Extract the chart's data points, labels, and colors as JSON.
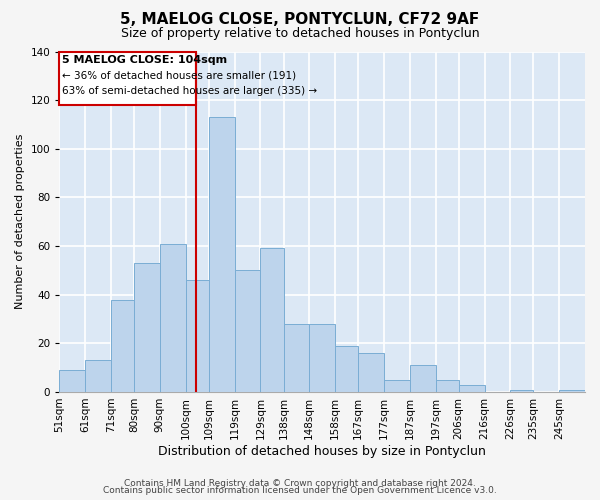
{
  "title": "5, MAELOG CLOSE, PONTYCLUN, CF72 9AF",
  "subtitle": "Size of property relative to detached houses in Pontyclun",
  "xlabel": "Distribution of detached houses by size in Pontyclun",
  "ylabel": "Number of detached properties",
  "bin_labels": [
    "51sqm",
    "61sqm",
    "71sqm",
    "80sqm",
    "90sqm",
    "100sqm",
    "109sqm",
    "119sqm",
    "129sqm",
    "138sqm",
    "148sqm",
    "158sqm",
    "167sqm",
    "177sqm",
    "187sqm",
    "197sqm",
    "206sqm",
    "216sqm",
    "226sqm",
    "235sqm",
    "245sqm"
  ],
  "bin_edges": [
    51,
    61,
    71,
    80,
    90,
    100,
    109,
    119,
    129,
    138,
    148,
    158,
    167,
    177,
    187,
    197,
    206,
    216,
    226,
    235,
    245
  ],
  "counts": [
    9,
    13,
    38,
    53,
    61,
    46,
    113,
    50,
    59,
    28,
    28,
    19,
    16,
    5,
    11,
    5,
    3,
    0,
    1,
    0,
    1
  ],
  "bar_color": "#bdd4ec",
  "bar_edge_color": "#7aadd4",
  "vline_x": 104,
  "vline_color": "#cc0000",
  "annotation_title": "5 MAELOG CLOSE: 104sqm",
  "annotation_line1": "← 36% of detached houses are smaller (191)",
  "annotation_line2": "63% of semi-detached houses are larger (335) →",
  "annotation_box_edge": "#cc0000",
  "ylim": [
    0,
    140
  ],
  "yticks": [
    0,
    20,
    40,
    60,
    80,
    100,
    120,
    140
  ],
  "footer1": "Contains HM Land Registry data © Crown copyright and database right 2024.",
  "footer2": "Contains public sector information licensed under the Open Government Licence v3.0.",
  "plot_bg_color": "#dce8f5",
  "fig_bg_color": "#f5f5f5",
  "grid_color": "#ffffff",
  "title_fontsize": 11,
  "subtitle_fontsize": 9,
  "xlabel_fontsize": 9,
  "ylabel_fontsize": 8,
  "tick_fontsize": 7.5,
  "footer_fontsize": 6.5,
  "ann_title_fontsize": 8,
  "ann_text_fontsize": 7.5
}
